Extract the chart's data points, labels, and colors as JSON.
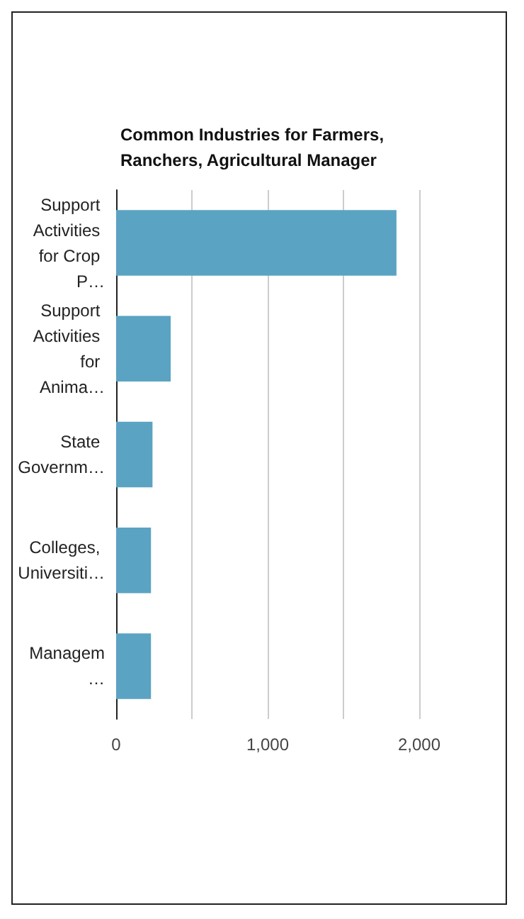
{
  "chart_data": {
    "type": "bar",
    "orientation": "horizontal",
    "title": "Common Industries for Farmers, Ranchers, Agricultural Manager",
    "categories": [
      "Support Activities for Crop P…",
      "Support Activities for Anima…",
      "State Governm…",
      "Colleges, Universiti…",
      "Managem…"
    ],
    "values": [
      1850,
      360,
      240,
      230,
      230
    ],
    "color": "#5ba3c2",
    "xlim": [
      0,
      2000
    ],
    "xticks": [
      0,
      {
        "value": 500,
        "label": null
      },
      {
        "value": 1000,
        "label": "1,000"
      },
      {
        "value": 1500,
        "label": null
      },
      {
        "value": 2000,
        "label": "2,000"
      }
    ],
    "grid": "x"
  }
}
